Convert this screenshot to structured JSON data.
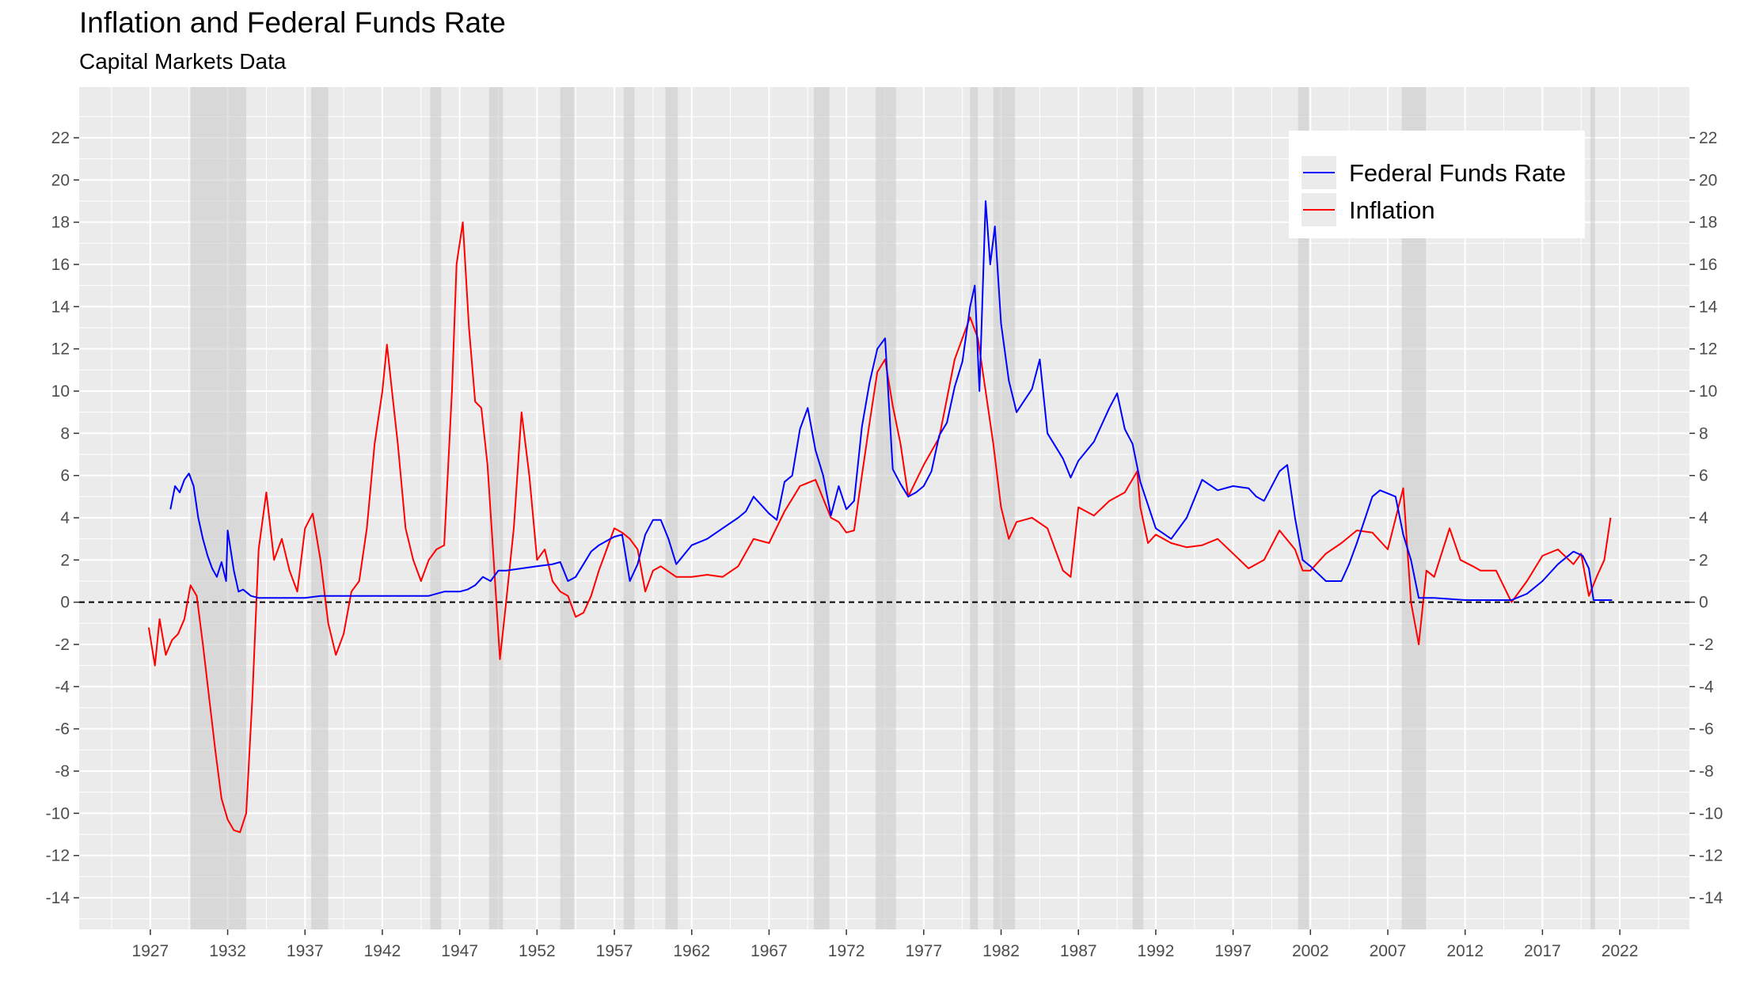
{
  "chart_data": {
    "type": "line",
    "title": "Inflation and Federal Funds Rate",
    "subtitle": "Capital Markets Data",
    "xlabel": "",
    "ylabel": "",
    "xlim": [
      1922.4,
      2026.5
    ],
    "ylim": [
      -15.5,
      24.4
    ],
    "x_ticks": [
      1927,
      1932,
      1937,
      1942,
      1947,
      1952,
      1957,
      1962,
      1967,
      1972,
      1977,
      1982,
      1987,
      1992,
      1997,
      2002,
      2007,
      2012,
      2017,
      2022
    ],
    "y_ticks": [
      -14,
      -12,
      -10,
      -8,
      -6,
      -4,
      -2,
      0,
      2,
      4,
      6,
      8,
      10,
      12,
      14,
      16,
      18,
      20,
      22
    ],
    "secondary_y_axis": true,
    "grid": true,
    "legend_position": "top-right",
    "reference_line": {
      "y": 0,
      "style": "dashed",
      "color": "#000000"
    },
    "recessions": [
      [
        1929.6,
        1933.2
      ],
      [
        1937.4,
        1938.5
      ],
      [
        1945.1,
        1945.8
      ],
      [
        1948.9,
        1949.8
      ],
      [
        1953.5,
        1954.4
      ],
      [
        1957.6,
        1958.3
      ],
      [
        1960.3,
        1961.1
      ],
      [
        1969.9,
        1970.9
      ],
      [
        1973.9,
        1975.2
      ],
      [
        1980.0,
        1980.5
      ],
      [
        1981.5,
        1982.9
      ],
      [
        1990.5,
        1991.2
      ],
      [
        2001.2,
        2001.9
      ],
      [
        2007.9,
        2009.5
      ],
      [
        2020.1,
        2020.4
      ]
    ],
    "series": [
      {
        "name": "Federal Funds Rate",
        "color": "#0000ff",
        "x": [
          1928.3,
          1928.6,
          1928.9,
          1929.2,
          1929.5,
          1929.8,
          1930.1,
          1930.4,
          1930.7,
          1931.0,
          1931.3,
          1931.6,
          1931.9,
          1932.0,
          1932.4,
          1932.7,
          1933.0,
          1933.5,
          1934.0,
          1935.0,
          1937.0,
          1938.0,
          1940.0,
          1943.0,
          1945.0,
          1946.0,
          1947.0,
          1947.5,
          1948.0,
          1948.5,
          1949.0,
          1949.5,
          1950.0,
          1951.0,
          1952.0,
          1953.0,
          1953.5,
          1954.0,
          1954.5,
          1955.0,
          1955.5,
          1956.0,
          1956.5,
          1957.0,
          1957.5,
          1958.0,
          1958.5,
          1959.0,
          1959.5,
          1960.0,
          1960.5,
          1961.0,
          1962.0,
          1963.0,
          1964.0,
          1965.0,
          1965.5,
          1966.0,
          1967.0,
          1967.5,
          1968.0,
          1968.5,
          1969.0,
          1969.5,
          1970.0,
          1970.5,
          1971.0,
          1971.5,
          1972.0,
          1972.5,
          1973.0,
          1973.5,
          1974.0,
          1974.5,
          1975.0,
          1975.5,
          1976.0,
          1976.5,
          1977.0,
          1977.5,
          1978.0,
          1978.5,
          1979.0,
          1979.5,
          1980.0,
          1980.3,
          1980.6,
          1981.0,
          1981.3,
          1981.6,
          1982.0,
          1982.5,
          1983.0,
          1984.0,
          1984.5,
          1985.0,
          1986.0,
          1986.5,
          1987.0,
          1988.0,
          1989.0,
          1989.5,
          1990.0,
          1990.5,
          1991.0,
          1992.0,
          1993.0,
          1994.0,
          1995.0,
          1996.0,
          1997.0,
          1998.0,
          1998.5,
          1999.0,
          2000.0,
          2000.5,
          2001.0,
          2001.5,
          2002.0,
          2003.0,
          2004.0,
          2004.5,
          2005.0,
          2006.0,
          2006.5,
          2007.5,
          2008.0,
          2008.5,
          2009.0,
          2010.0,
          2012.0,
          2015.0,
          2016.0,
          2017.0,
          2018.0,
          2019.0,
          2019.6,
          2020.0,
          2020.3,
          2021.5
        ],
        "values": [
          4.4,
          5.5,
          5.2,
          5.8,
          6.1,
          5.5,
          4.0,
          3.0,
          2.2,
          1.6,
          1.2,
          1.9,
          1.0,
          3.4,
          1.5,
          0.5,
          0.6,
          0.3,
          0.2,
          0.2,
          0.2,
          0.3,
          0.3,
          0.3,
          0.3,
          0.5,
          0.5,
          0.6,
          0.8,
          1.2,
          1.0,
          1.5,
          1.5,
          1.6,
          1.7,
          1.8,
          1.9,
          1.0,
          1.2,
          1.8,
          2.4,
          2.7,
          2.9,
          3.1,
          3.2,
          1.0,
          1.8,
          3.2,
          3.9,
          3.9,
          3.0,
          1.8,
          2.7,
          3.0,
          3.5,
          4.0,
          4.3,
          5.0,
          4.2,
          3.9,
          5.7,
          6.0,
          8.2,
          9.2,
          7.2,
          6.0,
          4.1,
          5.5,
          4.4,
          4.8,
          8.3,
          10.4,
          12.0,
          12.5,
          6.3,
          5.6,
          5.0,
          5.2,
          5.5,
          6.2,
          7.9,
          8.5,
          10.2,
          11.4,
          14.0,
          15.0,
          10.0,
          19.0,
          16.0,
          17.8,
          13.2,
          10.5,
          9.0,
          10.1,
          11.5,
          8.0,
          6.8,
          5.9,
          6.7,
          7.6,
          9.2,
          9.9,
          8.2,
          7.5,
          5.7,
          3.5,
          3.0,
          4.0,
          5.8,
          5.3,
          5.5,
          5.4,
          5.0,
          4.8,
          6.2,
          6.5,
          4.0,
          2.0,
          1.7,
          1.0,
          1.0,
          1.8,
          2.8,
          5.0,
          5.3,
          5.0,
          3.2,
          2.0,
          0.2,
          0.2,
          0.1,
          0.1,
          0.4,
          1.0,
          1.8,
          2.4,
          2.2,
          1.6,
          0.1,
          0.1
        ]
      },
      {
        "name": "Inflation",
        "color": "#ff0000",
        "x": [
          1926.9,
          1927.3,
          1927.6,
          1928.0,
          1928.4,
          1928.8,
          1929.2,
          1929.6,
          1930.0,
          1930.4,
          1930.8,
          1931.2,
          1931.6,
          1932.0,
          1932.4,
          1932.8,
          1933.2,
          1933.6,
          1934.0,
          1934.5,
          1935.0,
          1935.5,
          1936.0,
          1936.5,
          1937.0,
          1937.5,
          1938.0,
          1938.5,
          1939.0,
          1939.5,
          1940.0,
          1940.5,
          1941.0,
          1941.5,
          1942.0,
          1942.3,
          1942.7,
          1943.0,
          1943.5,
          1944.0,
          1944.5,
          1945.0,
          1945.5,
          1946.0,
          1946.5,
          1946.8,
          1947.2,
          1947.6,
          1948.0,
          1948.4,
          1948.8,
          1949.2,
          1949.6,
          1950.0,
          1950.5,
          1951.0,
          1951.5,
          1952.0,
          1952.5,
          1953.0,
          1953.5,
          1954.0,
          1954.5,
          1955.0,
          1955.5,
          1956.0,
          1956.5,
          1957.0,
          1957.5,
          1958.0,
          1958.5,
          1959.0,
          1959.5,
          1960.0,
          1961.0,
          1962.0,
          1963.0,
          1964.0,
          1965.0,
          1966.0,
          1967.0,
          1968.0,
          1969.0,
          1970.0,
          1971.0,
          1971.5,
          1972.0,
          1972.5,
          1973.0,
          1973.5,
          1974.0,
          1974.5,
          1975.0,
          1975.5,
          1976.0,
          1977.0,
          1978.0,
          1979.0,
          1980.0,
          1980.5,
          1981.0,
          1981.5,
          1982.0,
          1982.5,
          1983.0,
          1984.0,
          1985.0,
          1986.0,
          1986.5,
          1987.0,
          1988.0,
          1989.0,
          1990.0,
          1990.8,
          1991.0,
          1991.5,
          1992.0,
          1993.0,
          1994.0,
          1995.0,
          1996.0,
          1997.0,
          1998.0,
          1999.0,
          2000.0,
          2001.0,
          2001.5,
          2002.0,
          2003.0,
          2004.0,
          2005.0,
          2006.0,
          2007.0,
          2008.0,
          2008.5,
          2009.0,
          2009.5,
          2010.0,
          2011.0,
          2011.7,
          2012.5,
          2013.0,
          2014.0,
          2015.0,
          2016.0,
          2017.0,
          2018.0,
          2019.0,
          2019.5,
          2020.0,
          2020.5,
          2021.0,
          2021.4
        ],
        "values": [
          -1.2,
          -3.0,
          -0.8,
          -2.5,
          -1.8,
          -1.5,
          -0.8,
          0.8,
          0.3,
          -2.0,
          -4.5,
          -7.0,
          -9.3,
          -10.3,
          -10.8,
          -10.9,
          -10.0,
          -4.5,
          2.5,
          5.2,
          2.0,
          3.0,
          1.5,
          0.5,
          3.5,
          4.2,
          2.0,
          -1.0,
          -2.5,
          -1.5,
          0.5,
          1.0,
          3.5,
          7.5,
          10.0,
          12.2,
          9.5,
          7.5,
          3.5,
          2.0,
          1.0,
          2.0,
          2.5,
          2.7,
          10.0,
          16.0,
          18.0,
          13.0,
          9.5,
          9.2,
          6.5,
          2.0,
          -2.7,
          0.0,
          3.5,
          9.0,
          6.0,
          2.0,
          2.5,
          1.0,
          0.5,
          0.3,
          -0.7,
          -0.5,
          0.3,
          1.5,
          2.5,
          3.5,
          3.3,
          3.0,
          2.5,
          0.5,
          1.5,
          1.7,
          1.2,
          1.2,
          1.3,
          1.2,
          1.7,
          3.0,
          2.8,
          4.3,
          5.5,
          5.8,
          4.0,
          3.8,
          3.3,
          3.4,
          6.0,
          8.5,
          10.9,
          11.5,
          9.3,
          7.5,
          5.0,
          6.5,
          7.8,
          11.5,
          13.5,
          12.5,
          10.0,
          7.5,
          4.5,
          3.0,
          3.8,
          4.0,
          3.5,
          1.5,
          1.2,
          4.5,
          4.1,
          4.8,
          5.2,
          6.2,
          4.5,
          2.8,
          3.2,
          2.8,
          2.6,
          2.7,
          3.0,
          2.3,
          1.6,
          2.0,
          3.4,
          2.5,
          1.5,
          1.5,
          2.3,
          2.8,
          3.4,
          3.3,
          2.5,
          5.4,
          0.0,
          -2.0,
          1.5,
          1.2,
          3.5,
          2.0,
          1.7,
          1.5,
          1.5,
          0.0,
          1.0,
          2.2,
          2.5,
          1.8,
          2.3,
          0.3,
          1.2,
          2.0,
          4.0
        ]
      }
    ]
  }
}
